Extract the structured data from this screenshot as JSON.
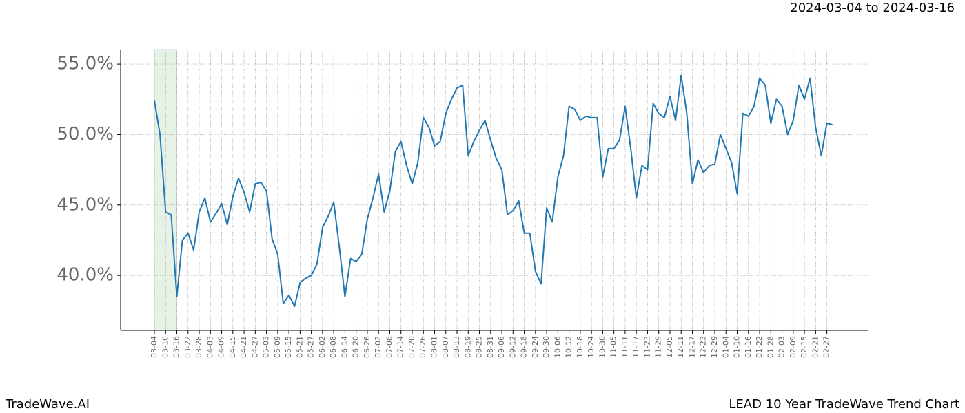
{
  "header": {
    "date_range": "2024-03-04 to 2024-03-16"
  },
  "footer": {
    "brand": "TradeWave.AI",
    "chart_title": "LEAD 10 Year TradeWave Trend Chart"
  },
  "chart_data": {
    "type": "line",
    "grid": true,
    "categories": [
      "03-04",
      null,
      "03-10",
      null,
      "03-16",
      null,
      "03-22",
      null,
      "03-28",
      null,
      "04-03",
      null,
      "04-09",
      null,
      "04-15",
      null,
      "04-21",
      null,
      "04-27",
      null,
      "05-03",
      null,
      "05-09",
      null,
      "05-15",
      null,
      "05-21",
      null,
      "05-27",
      null,
      "06-02",
      null,
      "06-08",
      null,
      "06-14",
      null,
      "06-20",
      null,
      "06-26",
      null,
      "07-02",
      null,
      "07-08",
      null,
      "07-14",
      null,
      "07-20",
      null,
      "07-26",
      null,
      "08-01",
      null,
      "08-07",
      null,
      "08-13",
      null,
      "08-19",
      null,
      "08-25",
      null,
      "08-31",
      null,
      "09-06",
      null,
      "09-12",
      null,
      "09-18",
      null,
      "09-24",
      null,
      "09-30",
      null,
      "10-06",
      null,
      "10-12",
      null,
      "10-18",
      null,
      "10-24",
      null,
      "10-30",
      null,
      "11-05",
      null,
      "11-11",
      null,
      "11-17",
      null,
      "11-23",
      null,
      "11-29",
      null,
      "12-05",
      null,
      "12-11",
      null,
      "12-17",
      null,
      "12-23",
      null,
      "12-29",
      null,
      "01-04",
      null,
      "01-10",
      null,
      "01-16",
      null,
      "01-22",
      null,
      "01-28",
      null,
      "02-03",
      null,
      "02-09",
      null,
      "02-15",
      null,
      "02-21",
      null,
      "02-27",
      null
    ],
    "series": [
      {
        "color": "#1f77b4",
        "values": [
          52.4,
          50.0,
          44.5,
          44.3,
          38.5,
          42.5,
          43.0,
          41.8,
          44.5,
          45.5,
          43.8,
          44.4,
          45.1,
          43.6,
          45.6,
          46.9,
          45.9,
          44.5,
          46.5,
          46.6,
          46.0,
          42.6,
          41.5,
          38.0,
          38.6,
          37.8,
          39.5,
          39.8,
          40.0,
          40.8,
          43.4,
          44.2,
          45.2,
          42.0,
          38.5,
          41.2,
          41.0,
          41.5,
          44.0,
          45.5,
          47.2,
          44.5,
          46.0,
          48.8,
          49.5,
          47.8,
          46.5,
          48.0,
          51.2,
          50.5,
          49.2,
          49.5,
          51.5,
          52.5,
          53.3,
          53.5,
          48.5,
          49.5,
          50.3,
          51.0,
          49.6,
          48.3,
          47.5,
          44.3,
          44.6,
          45.3,
          43.0,
          43.0,
          40.3,
          39.4,
          44.8,
          43.8,
          47.0,
          48.5,
          52.0,
          51.8,
          51.0,
          51.3,
          51.2,
          51.2,
          47.0,
          49.0,
          49.0,
          49.6,
          52.0,
          49.0,
          45.5,
          47.8,
          47.5,
          52.2,
          51.5,
          51.2,
          52.7,
          51.0,
          54.2,
          51.5,
          46.5,
          48.2,
          47.3,
          47.8,
          47.9,
          50.0,
          49.0,
          48.0,
          45.8,
          51.5,
          51.3,
          52.0,
          54.0,
          53.5,
          50.8,
          52.5,
          52.0,
          50.0,
          51.0,
          53.5,
          52.5,
          54.0,
          50.5,
          48.5,
          50.8,
          50.7
        ]
      }
    ],
    "ylim": [
      36.1,
      56.03
    ],
    "yticks": [
      {
        "value": 40,
        "label": "40.0%"
      },
      {
        "value": 45,
        "label": "45.0%"
      },
      {
        "value": 50,
        "label": "50.0%"
      },
      {
        "value": 55,
        "label": "55.0%"
      }
    ]
  }
}
